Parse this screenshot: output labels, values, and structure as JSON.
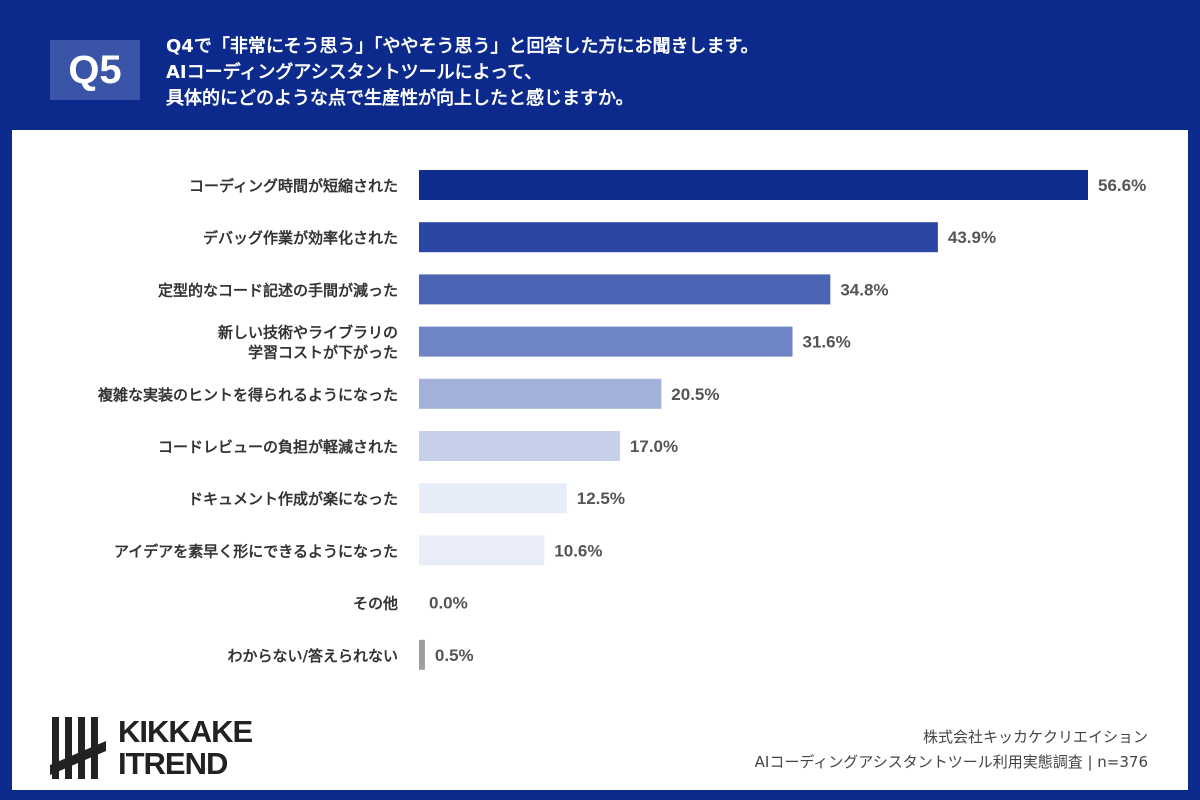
{
  "header": {
    "badge": "Q5",
    "lines": [
      "Q4で「非常にそう思う」「ややそう思う」と回答した方にお聞きします。",
      "AIコーディングアシスタントツールによって、",
      "具体的にどのような点で生産性が向上したと感じますか。"
    ]
  },
  "chart_data": {
    "type": "bar",
    "orientation": "horizontal",
    "unit": "%",
    "categories": [
      [
        "コーディング時間が短縮された"
      ],
      [
        "デバッグ作業が効率化された"
      ],
      [
        "定型的なコード記述の手間が減った"
      ],
      [
        "新しい技術やライブラリの",
        "学習コストが下がった"
      ],
      [
        "複雑な実装のヒントを得られるようになった"
      ],
      [
        "コードレビューの負担が軽減された"
      ],
      [
        "ドキュメント作成が楽になった"
      ],
      [
        "アイデアを素早く形にできるようになった"
      ],
      [
        "その他"
      ],
      [
        "わからない/答えられない"
      ]
    ],
    "values": [
      56.6,
      43.9,
      34.8,
      31.6,
      20.5,
      17.0,
      12.5,
      10.6,
      0.0,
      0.5
    ],
    "value_labels": [
      "56.6%",
      "43.9%",
      "34.8%",
      "31.6%",
      "20.5%",
      "17.0%",
      "12.5%",
      "10.6%",
      "0.0%",
      "0.5%"
    ],
    "colors": [
      "#0f2d8e",
      "#2b47a6",
      "#4c64b4",
      "#6f84c4",
      "#a2b0db",
      "#c6d0eb",
      "#e6ecf8",
      "#e8edf8",
      "#e8edf8",
      "#9e9e9e"
    ],
    "xlim": [
      0,
      56.6
    ],
    "grid": false
  },
  "footer": {
    "logo_line1": "KIKKAKE",
    "logo_line2": "ITREND",
    "company": "株式会社キッカケクリエイション",
    "survey": "AIコーディングアシスタントツール利用実態調査 | n=376"
  }
}
